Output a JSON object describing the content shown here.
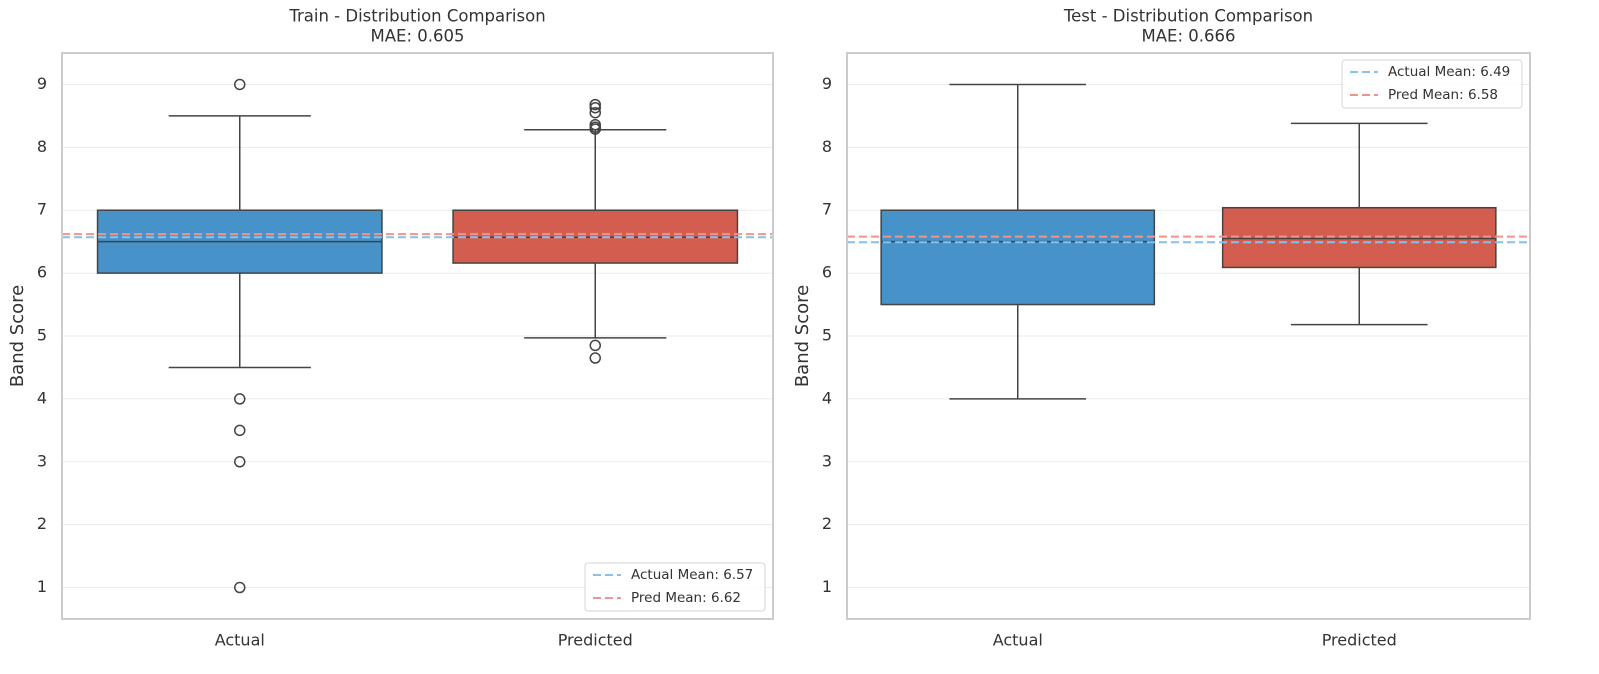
{
  "chart_data": [
    {
      "type": "box",
      "title": "Train - Distribution Comparison",
      "subtitle": "MAE: 0.605",
      "ylabel": "Band Score",
      "categories": [
        "Actual",
        "Predicted"
      ],
      "boxes": [
        {
          "color": "#4692c9",
          "whislo": 4.5,
          "q1": 6,
          "median": 6.5,
          "q3": 7,
          "whishi": 8.5,
          "fliers": [
            9,
            4,
            3.5,
            3,
            1
          ]
        },
        {
          "color": "#d35d4f",
          "whislo": 4.97,
          "q1": 6.16,
          "median": 6.57,
          "q3": 7,
          "whishi": 8.28,
          "fliers": [
            8.68,
            8.63,
            8.55,
            8.36,
            8.32,
            8.29,
            4.85,
            4.65
          ]
        }
      ],
      "mean_lines": [
        {
          "name": "Actual Mean: 6.57",
          "value": 6.57,
          "color": "#85c1e9"
        },
        {
          "name": "Pred Mean: 6.62",
          "value": 6.62,
          "color": "#f1948a"
        }
      ],
      "legend": "lower right",
      "grid": true,
      "ylim": [
        0.5,
        9.5
      ],
      "yticks": [
        1,
        2,
        3,
        4,
        5,
        6,
        7,
        8,
        9
      ]
    },
    {
      "type": "box",
      "title": "Test - Distribution Comparison",
      "subtitle": "MAE: 0.666",
      "ylabel": "Band Score",
      "categories": [
        "Actual",
        "Predicted"
      ],
      "boxes": [
        {
          "color": "#4692c9",
          "whislo": 4,
          "q1": 5.5,
          "median": 6.5,
          "q3": 7,
          "whishi": 9,
          "fliers": []
        },
        {
          "color": "#d35d4f",
          "whislo": 5.18,
          "q1": 6.09,
          "median": 6.55,
          "q3": 7.04,
          "whishi": 8.38,
          "fliers": []
        }
      ],
      "mean_lines": [
        {
          "name": "Actual Mean: 6.49",
          "value": 6.49,
          "color": "#85c1e9"
        },
        {
          "name": "Pred Mean: 6.58",
          "value": 6.58,
          "color": "#f1948a"
        }
      ],
      "legend": "upper right",
      "grid": true,
      "ylim": [
        0.5,
        9.5
      ],
      "yticks": [
        1,
        2,
        3,
        4,
        5,
        6,
        7,
        8,
        9
      ]
    }
  ]
}
